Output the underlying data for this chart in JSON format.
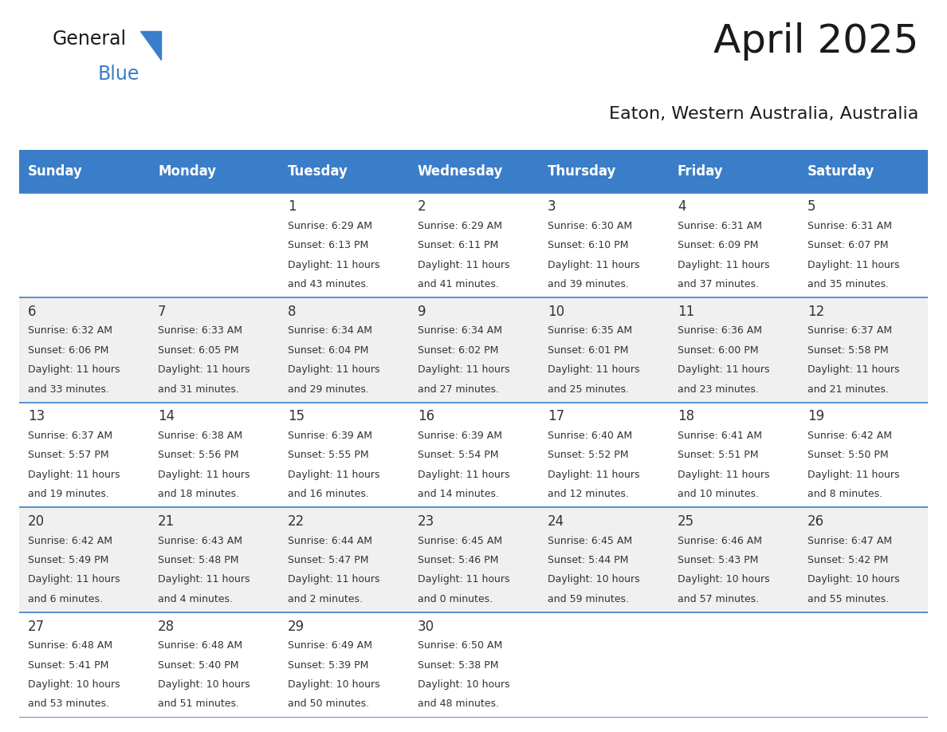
{
  "title": "April 2025",
  "subtitle": "Eaton, Western Australia, Australia",
  "header_color": "#3A7DC9",
  "header_text_color": "#FFFFFF",
  "day_names": [
    "Sunday",
    "Monday",
    "Tuesday",
    "Wednesday",
    "Thursday",
    "Friday",
    "Saturday"
  ],
  "background_color": "#FFFFFF",
  "row_alt_color": "#F0F0F0",
  "cell_border_color": "#3A7DC9",
  "text_color": "#333333",
  "logo_black": "#1a1a1a",
  "logo_blue": "#3A7DC9",
  "title_fontsize": 36,
  "subtitle_fontsize": 16,
  "header_fontsize": 12,
  "day_num_fontsize": 12,
  "cell_text_fontsize": 9,
  "days": [
    {
      "day": 1,
      "col": 2,
      "row": 0,
      "sunrise": "6:29 AM",
      "sunset": "6:13 PM",
      "daylight": "11 hours and 43 minutes"
    },
    {
      "day": 2,
      "col": 3,
      "row": 0,
      "sunrise": "6:29 AM",
      "sunset": "6:11 PM",
      "daylight": "11 hours and 41 minutes"
    },
    {
      "day": 3,
      "col": 4,
      "row": 0,
      "sunrise": "6:30 AM",
      "sunset": "6:10 PM",
      "daylight": "11 hours and 39 minutes"
    },
    {
      "day": 4,
      "col": 5,
      "row": 0,
      "sunrise": "6:31 AM",
      "sunset": "6:09 PM",
      "daylight": "11 hours and 37 minutes"
    },
    {
      "day": 5,
      "col": 6,
      "row": 0,
      "sunrise": "6:31 AM",
      "sunset": "6:07 PM",
      "daylight": "11 hours and 35 minutes"
    },
    {
      "day": 6,
      "col": 0,
      "row": 1,
      "sunrise": "6:32 AM",
      "sunset": "6:06 PM",
      "daylight": "11 hours and 33 minutes"
    },
    {
      "day": 7,
      "col": 1,
      "row": 1,
      "sunrise": "6:33 AM",
      "sunset": "6:05 PM",
      "daylight": "11 hours and 31 minutes"
    },
    {
      "day": 8,
      "col": 2,
      "row": 1,
      "sunrise": "6:34 AM",
      "sunset": "6:04 PM",
      "daylight": "11 hours and 29 minutes"
    },
    {
      "day": 9,
      "col": 3,
      "row": 1,
      "sunrise": "6:34 AM",
      "sunset": "6:02 PM",
      "daylight": "11 hours and 27 minutes"
    },
    {
      "day": 10,
      "col": 4,
      "row": 1,
      "sunrise": "6:35 AM",
      "sunset": "6:01 PM",
      "daylight": "11 hours and 25 minutes"
    },
    {
      "day": 11,
      "col": 5,
      "row": 1,
      "sunrise": "6:36 AM",
      "sunset": "6:00 PM",
      "daylight": "11 hours and 23 minutes"
    },
    {
      "day": 12,
      "col": 6,
      "row": 1,
      "sunrise": "6:37 AM",
      "sunset": "5:58 PM",
      "daylight": "11 hours and 21 minutes"
    },
    {
      "day": 13,
      "col": 0,
      "row": 2,
      "sunrise": "6:37 AM",
      "sunset": "5:57 PM",
      "daylight": "11 hours and 19 minutes"
    },
    {
      "day": 14,
      "col": 1,
      "row": 2,
      "sunrise": "6:38 AM",
      "sunset": "5:56 PM",
      "daylight": "11 hours and 18 minutes"
    },
    {
      "day": 15,
      "col": 2,
      "row": 2,
      "sunrise": "6:39 AM",
      "sunset": "5:55 PM",
      "daylight": "11 hours and 16 minutes"
    },
    {
      "day": 16,
      "col": 3,
      "row": 2,
      "sunrise": "6:39 AM",
      "sunset": "5:54 PM",
      "daylight": "11 hours and 14 minutes"
    },
    {
      "day": 17,
      "col": 4,
      "row": 2,
      "sunrise": "6:40 AM",
      "sunset": "5:52 PM",
      "daylight": "11 hours and 12 minutes"
    },
    {
      "day": 18,
      "col": 5,
      "row": 2,
      "sunrise": "6:41 AM",
      "sunset": "5:51 PM",
      "daylight": "11 hours and 10 minutes"
    },
    {
      "day": 19,
      "col": 6,
      "row": 2,
      "sunrise": "6:42 AM",
      "sunset": "5:50 PM",
      "daylight": "11 hours and 8 minutes"
    },
    {
      "day": 20,
      "col": 0,
      "row": 3,
      "sunrise": "6:42 AM",
      "sunset": "5:49 PM",
      "daylight": "11 hours and 6 minutes"
    },
    {
      "day": 21,
      "col": 1,
      "row": 3,
      "sunrise": "6:43 AM",
      "sunset": "5:48 PM",
      "daylight": "11 hours and 4 minutes"
    },
    {
      "day": 22,
      "col": 2,
      "row": 3,
      "sunrise": "6:44 AM",
      "sunset": "5:47 PM",
      "daylight": "11 hours and 2 minutes"
    },
    {
      "day": 23,
      "col": 3,
      "row": 3,
      "sunrise": "6:45 AM",
      "sunset": "5:46 PM",
      "daylight": "11 hours and 0 minutes"
    },
    {
      "day": 24,
      "col": 4,
      "row": 3,
      "sunrise": "6:45 AM",
      "sunset": "5:44 PM",
      "daylight": "10 hours and 59 minutes"
    },
    {
      "day": 25,
      "col": 5,
      "row": 3,
      "sunrise": "6:46 AM",
      "sunset": "5:43 PM",
      "daylight": "10 hours and 57 minutes"
    },
    {
      "day": 26,
      "col": 6,
      "row": 3,
      "sunrise": "6:47 AM",
      "sunset": "5:42 PM",
      "daylight": "10 hours and 55 minutes"
    },
    {
      "day": 27,
      "col": 0,
      "row": 4,
      "sunrise": "6:48 AM",
      "sunset": "5:41 PM",
      "daylight": "10 hours and 53 minutes"
    },
    {
      "day": 28,
      "col": 1,
      "row": 4,
      "sunrise": "6:48 AM",
      "sunset": "5:40 PM",
      "daylight": "10 hours and 51 minutes"
    },
    {
      "day": 29,
      "col": 2,
      "row": 4,
      "sunrise": "6:49 AM",
      "sunset": "5:39 PM",
      "daylight": "10 hours and 50 minutes"
    },
    {
      "day": 30,
      "col": 3,
      "row": 4,
      "sunrise": "6:50 AM",
      "sunset": "5:38 PM",
      "daylight": "10 hours and 48 minutes"
    }
  ]
}
